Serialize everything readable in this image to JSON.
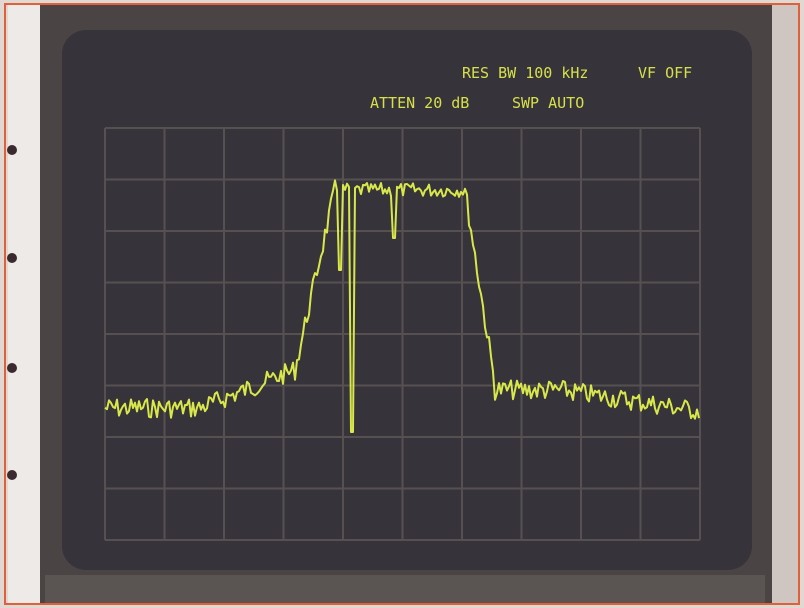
{
  "screen": {
    "line1": {
      "bandwidth": "RES BW 100 kHz",
      "video_filter": "VF OFF"
    },
    "line2": {
      "attenuation": "ATTEN 20 dB",
      "sweep": "SWP AUTO"
    }
  }
}
